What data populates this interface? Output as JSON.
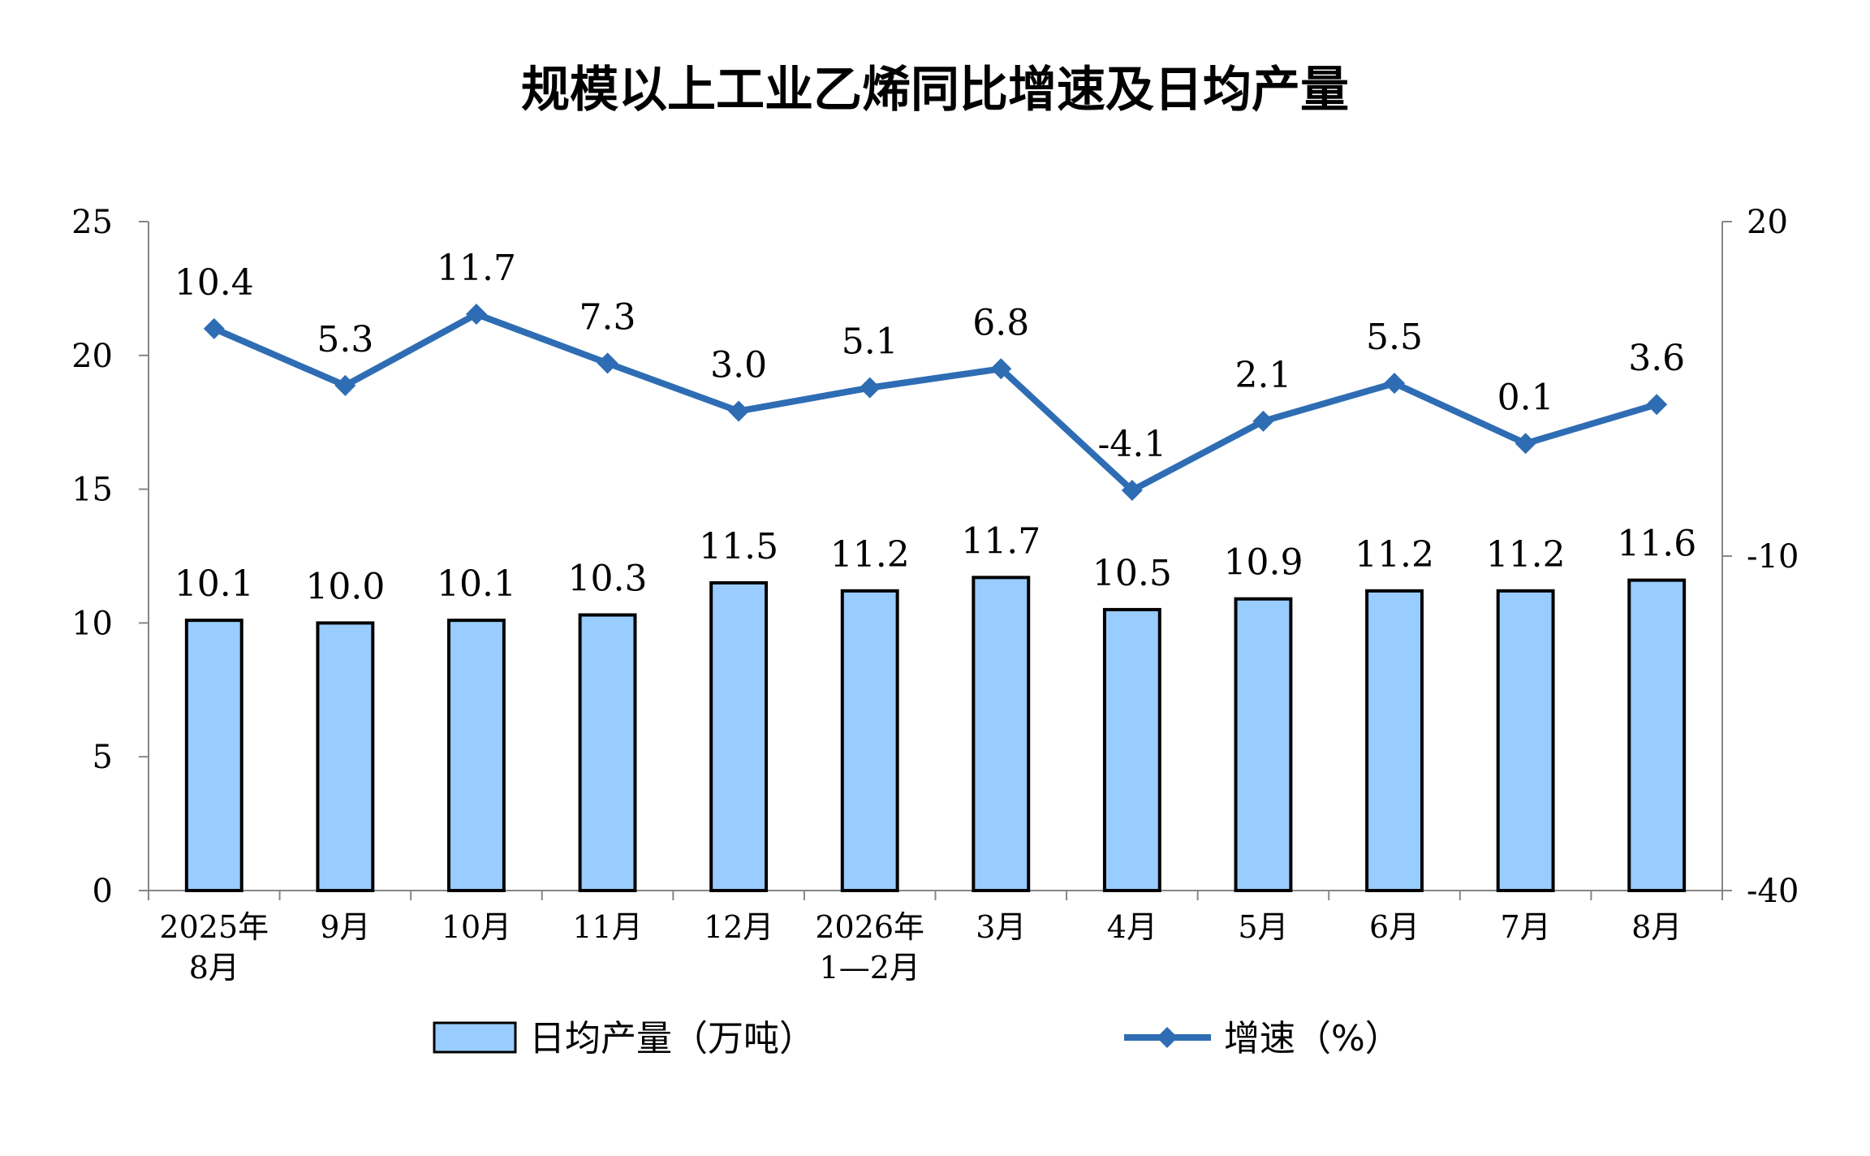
{
  "chart_data": {
    "type": "bar",
    "title": "规模以上工业乙烯同比增速及日均产量",
    "categories": [
      [
        "2025年",
        "8月"
      ],
      [
        "9月"
      ],
      [
        "10月"
      ],
      [
        "11月"
      ],
      [
        "12月"
      ],
      [
        "2026年",
        "1—2月"
      ],
      [
        "3月"
      ],
      [
        "4月"
      ],
      [
        "5月"
      ],
      [
        "6月"
      ],
      [
        "7月"
      ],
      [
        "8月"
      ]
    ],
    "series": [
      {
        "name": "日均产量（万吨）",
        "type": "bar",
        "axis": "left",
        "color": "#99CCFF",
        "values": [
          10.1,
          10.0,
          10.1,
          10.3,
          11.5,
          11.2,
          11.7,
          10.5,
          10.9,
          11.2,
          11.2,
          11.6
        ]
      },
      {
        "name": "增速（%）",
        "type": "line",
        "axis": "right",
        "color": "#2E6DB4",
        "values": [
          10.4,
          5.3,
          11.7,
          7.3,
          3.0,
          5.1,
          6.8,
          -4.1,
          2.1,
          5.5,
          0.1,
          3.6
        ]
      }
    ],
    "ylim_left": [
      0,
      25
    ],
    "yticks_left": [
      0,
      5,
      10,
      15,
      20,
      25
    ],
    "ylim_right": [
      -40,
      20
    ],
    "yticks_right": [
      -40,
      -10,
      20
    ],
    "grid": false,
    "legend_position": "bottom"
  }
}
